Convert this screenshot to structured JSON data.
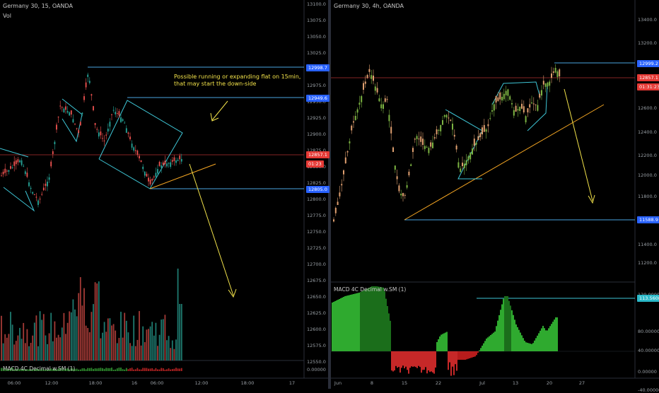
{
  "left": {
    "title": "Germany 30, 15, OANDA",
    "vol_label": "Vol",
    "y_ticks": [
      "13100.0",
      "13075.0",
      "13050.0",
      "13025.0",
      "13000.0",
      "12975.0",
      "12950.0",
      "12925.0",
      "12900.0",
      "12875.0",
      "12850.0",
      "12825.0",
      "12800.0",
      "12775.0",
      "12750.0",
      "12725.0",
      "12700.0",
      "12675.0",
      "12650.0",
      "12625.0",
      "12600.0",
      "12575.0",
      "12550.0"
    ],
    "x_ticks": [
      "06:00",
      "12:00",
      "18:00",
      "16",
      "06:00",
      "12:00",
      "18:00",
      "17"
    ],
    "price_labels": {
      "high": "12998.7",
      "mid": "12949.6",
      "last": "12857.1",
      "timer": "01:23",
      "low": "12805.0"
    },
    "annotation_line1": "Possible running or expanding flat on 15min,",
    "annotation_line2": "that may start the down-side",
    "macd_title": "MACD 4C Decimal w.SM (1)",
    "macd_axis": [
      "0.00000"
    ]
  },
  "right": {
    "title": "Germany 30, 4h, OANDA",
    "y_ticks": [
      "13400.0",
      "13200.0",
      "13000.0",
      "12800.0",
      "12600.0",
      "12400.0",
      "12200.0",
      "12000.0",
      "11800.0",
      "11600.0",
      "11400.0",
      "11200.0"
    ],
    "x_ticks": [
      "Jun",
      "8",
      "15",
      "22",
      "Jul",
      "13",
      "20",
      "27"
    ],
    "price_labels": {
      "high": "12999.2",
      "last": "12857.1",
      "timer": "01:31:23",
      "low": "11588.9",
      "macd": "113.56086"
    },
    "macd_title": "MACD 4C Decimal w.SM (1)",
    "macd_ticks": [
      "120.00000",
      "80.00000",
      "40.00000",
      "0.00000",
      "-40.00000"
    ]
  },
  "colors": {
    "up": "#26a69a",
    "down": "#ef5350",
    "blue_label": "#2962ff",
    "red_label": "#e53935",
    "trend": "#f5a623",
    "arrow": "#f2e24a",
    "channel": "#3ec6d6"
  }
}
